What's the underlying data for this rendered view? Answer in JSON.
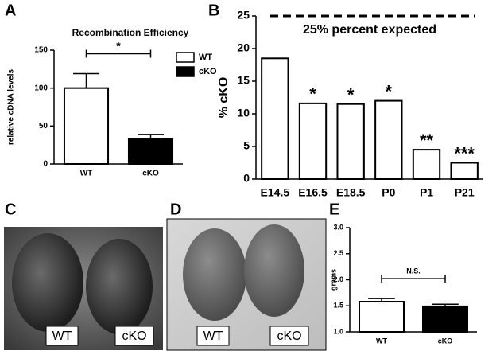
{
  "panel_labels": [
    "A",
    "B",
    "C",
    "D",
    "E"
  ],
  "photos": {
    "C": {
      "labels": [
        "WT",
        "cKO"
      ]
    },
    "D": {
      "labels": [
        "WT",
        "cKO"
      ]
    }
  },
  "chart_data": [
    {
      "type": "bar",
      "title": "Recombination Efficiency",
      "y_label": "relative cDNA levels",
      "categories": [
        "WT",
        "cKO"
      ],
      "values": [
        100,
        33
      ],
      "errors": [
        19,
        6
      ],
      "colors": [
        "#ffffff",
        "#000000"
      ],
      "ylim": [
        0,
        150
      ],
      "yticks": [
        0,
        50,
        100,
        150
      ],
      "significance": "*",
      "legend": [
        {
          "name": "WT",
          "color": "#ffffff"
        },
        {
          "name": "cKO",
          "color": "#000000"
        }
      ]
    },
    {
      "type": "bar",
      "y_label": "% cKO",
      "categories": [
        "E14.5",
        "E16.5",
        "E18.5",
        "P0",
        "P1",
        "P21"
      ],
      "values": [
        18.5,
        11.6,
        11.5,
        12.0,
        4.5,
        2.5
      ],
      "annotations": [
        null,
        "*",
        "*",
        "*",
        "**",
        "***"
      ],
      "colors": [
        "#ffffff",
        "#ffffff",
        "#ffffff",
        "#ffffff",
        "#ffffff",
        "#ffffff"
      ],
      "ylim": [
        0,
        25
      ],
      "yticks": [
        0,
        5,
        10,
        15,
        20,
        25
      ],
      "reference_line": {
        "value": 25,
        "label": "25% percent expected"
      }
    },
    {
      "type": "bar",
      "y_label": "grams",
      "categories": [
        "WT",
        "cKO"
      ],
      "values": [
        1.58,
        1.49
      ],
      "errors": [
        0.06,
        0.04
      ],
      "colors": [
        "#ffffff",
        "#000000"
      ],
      "ylim": [
        1.0,
        3.0
      ],
      "yticks": [
        {
          "value": 1.0,
          "label": "1.0"
        },
        {
          "value": 1.5,
          "label": "1.5"
        },
        {
          "value": 2.0,
          "label": "2.0"
        },
        {
          "value": 2.5,
          "label": "2.5"
        },
        {
          "value": 3.0,
          "label": "3.0"
        }
      ],
      "significance": "N.S."
    }
  ]
}
